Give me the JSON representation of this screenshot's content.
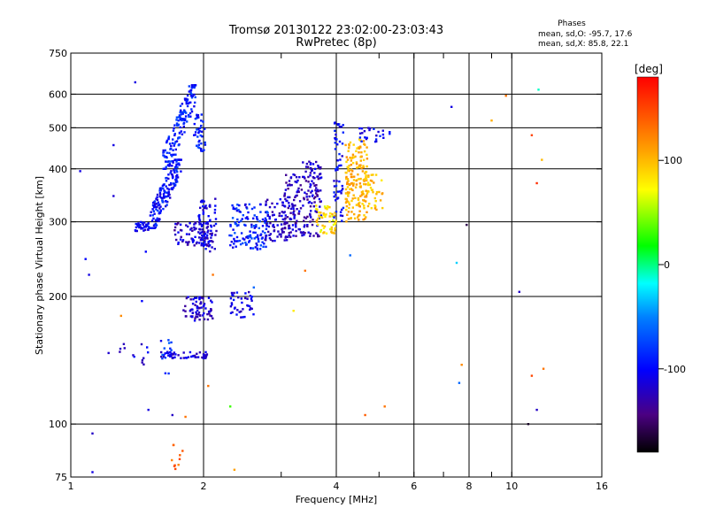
{
  "chart_data": {
    "type": "scatter",
    "title": "Tromsø 20130122 23:02:00-23:03:43",
    "subtitle": "RwPretec (8p)",
    "xlabel": "Frequency [MHz]",
    "ylabel": "Stationary phase Virtual Height [km]",
    "x_scale": "log",
    "y_scale": "log",
    "xlim": [
      1,
      16
    ],
    "ylim": [
      75,
      750
    ],
    "x_ticks": [
      1,
      2,
      4,
      6,
      8,
      10,
      16
    ],
    "x_minor_ticks": [
      3,
      5,
      7,
      9
    ],
    "y_ticks": [
      75,
      100,
      200,
      300,
      400,
      500,
      600,
      750
    ],
    "x_grid": [
      2,
      4,
      6,
      8,
      10
    ],
    "y_grid": [
      100,
      200,
      300,
      400,
      500,
      600
    ],
    "grid": true,
    "legend": {
      "heading": "Phases",
      "lines": [
        "mean, sd,O: -95.7, 17.6",
        "mean, sd,X:  85.8, 22.1"
      ],
      "placement": "top-right"
    },
    "colorbar": {
      "label": "[deg]",
      "range": [
        -180,
        180
      ],
      "ticks": [
        -100,
        0,
        100
      ]
    },
    "clusters": [
      {
        "f": [
          1.4,
          1.5
        ],
        "h": [
          285,
          300
        ],
        "n": 40,
        "phase": [
          -120,
          -85
        ]
      },
      {
        "f": [
          1.5,
          1.78
        ],
        "h": [
          290,
          420
        ],
        "n": 170,
        "phase": [
          -120,
          -75
        ],
        "trend": "rising"
      },
      {
        "f": [
          1.62,
          1.92
        ],
        "h": [
          400,
          630
        ],
        "n": 150,
        "phase": [
          -110,
          -70
        ],
        "trend": "rising"
      },
      {
        "f": [
          1.9,
          2.02
        ],
        "h": [
          440,
          540
        ],
        "n": 40,
        "phase": [
          -110,
          -70
        ]
      },
      {
        "f": [
          1.72,
          2.1
        ],
        "h": [
          262,
          300
        ],
        "n": 80,
        "phase": [
          -140,
          -95
        ]
      },
      {
        "f": [
          1.95,
          2.15
        ],
        "h": [
          255,
          340
        ],
        "n": 70,
        "phase": [
          -130,
          -90
        ]
      },
      {
        "f": [
          2.28,
          2.8
        ],
        "h": [
          258,
          330
        ],
        "n": 130,
        "phase": [
          -115,
          -65
        ]
      },
      {
        "f": [
          2.75,
          3.15
        ],
        "h": [
          270,
          340
        ],
        "n": 80,
        "phase": [
          -135,
          -100
        ]
      },
      {
        "f": [
          3.05,
          3.7
        ],
        "h": [
          275,
          390
        ],
        "n": 170,
        "phase": [
          -145,
          -100
        ]
      },
      {
        "f": [
          3.35,
          3.7
        ],
        "h": [
          380,
          420
        ],
        "n": 30,
        "phase": [
          -140,
          -100
        ]
      },
      {
        "f": [
          3.6,
          4.0
        ],
        "h": [
          280,
          330
        ],
        "n": 55,
        "phase": [
          60,
          110
        ]
      },
      {
        "f": [
          3.95,
          4.15
        ],
        "h": [
          300,
          520
        ],
        "n": 55,
        "phase": [
          -120,
          -80
        ]
      },
      {
        "f": [
          4.2,
          4.7
        ],
        "h": [
          300,
          470
        ],
        "n": 180,
        "phase": [
          85,
          120
        ]
      },
      {
        "f": [
          4.7,
          5.1
        ],
        "h": [
          320,
          390
        ],
        "n": 35,
        "phase": [
          80,
          115
        ]
      },
      {
        "f": [
          4.5,
          5.3
        ],
        "h": [
          460,
          500
        ],
        "n": 25,
        "phase": [
          -120,
          -80
        ]
      },
      {
        "f": [
          1.8,
          2.1
        ],
        "h": [
          175,
          200
        ],
        "n": 70,
        "phase": [
          -140,
          -100
        ]
      },
      {
        "f": [
          2.3,
          2.6
        ],
        "h": [
          178,
          205
        ],
        "n": 40,
        "phase": [
          -130,
          -90
        ]
      },
      {
        "f": [
          1.6,
          2.05
        ],
        "h": [
          143,
          148
        ],
        "n": 55,
        "phase": [
          -130,
          -95
        ]
      },
      {
        "f": [
          1.2,
          1.5
        ],
        "h": [
          138,
          155
        ],
        "n": 14,
        "phase": [
          -130,
          -90
        ]
      },
      {
        "f": [
          1.6,
          1.7
        ],
        "h": [
          130,
          160
        ],
        "n": 12,
        "phase": [
          -110,
          -60
        ]
      },
      {
        "f": [
          1.65,
          1.82
        ],
        "h": [
          78,
          92
        ],
        "n": 10,
        "phase": [
          120,
          150
        ]
      }
    ],
    "isolated": [
      {
        "f": 1.05,
        "h": 395,
        "phase": -110
      },
      {
        "f": 1.08,
        "h": 245,
        "phase": -100
      },
      {
        "f": 1.1,
        "h": 225,
        "phase": -110
      },
      {
        "f": 1.12,
        "h": 95,
        "phase": -120
      },
      {
        "f": 1.12,
        "h": 77,
        "phase": -110
      },
      {
        "f": 1.25,
        "h": 455,
        "phase": -110
      },
      {
        "f": 1.25,
        "h": 345,
        "phase": -115
      },
      {
        "f": 1.3,
        "h": 180,
        "phase": 120
      },
      {
        "f": 1.4,
        "h": 640,
        "phase": -110
      },
      {
        "f": 1.45,
        "h": 195,
        "phase": -100
      },
      {
        "f": 1.48,
        "h": 255,
        "phase": -100
      },
      {
        "f": 1.5,
        "h": 108,
        "phase": -110
      },
      {
        "f": 1.7,
        "h": 105,
        "phase": -120
      },
      {
        "f": 1.82,
        "h": 104,
        "phase": 130
      },
      {
        "f": 2.05,
        "h": 123,
        "phase": 130
      },
      {
        "f": 2.1,
        "h": 225,
        "phase": 130
      },
      {
        "f": 2.3,
        "h": 110,
        "phase": 30
      },
      {
        "f": 2.35,
        "h": 78,
        "phase": 110
      },
      {
        "f": 2.6,
        "h": 210,
        "phase": -60
      },
      {
        "f": 3.2,
        "h": 185,
        "phase": 80
      },
      {
        "f": 3.4,
        "h": 230,
        "phase": 130
      },
      {
        "f": 4.3,
        "h": 250,
        "phase": -60
      },
      {
        "f": 4.65,
        "h": 105,
        "phase": 140
      },
      {
        "f": 5.15,
        "h": 110,
        "phase": 130
      },
      {
        "f": 7.3,
        "h": 560,
        "phase": -110
      },
      {
        "f": 7.5,
        "h": 240,
        "phase": -30
      },
      {
        "f": 7.6,
        "h": 125,
        "phase": -60
      },
      {
        "f": 7.7,
        "h": 138,
        "phase": 120
      },
      {
        "f": 7.9,
        "h": 295,
        "phase": -160
      },
      {
        "f": 9.0,
        "h": 520,
        "phase": 105
      },
      {
        "f": 9.7,
        "h": 595,
        "phase": 130
      },
      {
        "f": 10.4,
        "h": 205,
        "phase": -120
      },
      {
        "f": 10.9,
        "h": 100,
        "phase": -170
      },
      {
        "f": 11.1,
        "h": 480,
        "phase": 150
      },
      {
        "f": 11.1,
        "h": 130,
        "phase": 150
      },
      {
        "f": 11.4,
        "h": 370,
        "phase": 160
      },
      {
        "f": 11.5,
        "h": 615,
        "phase": -10
      },
      {
        "f": 11.4,
        "h": 108,
        "phase": -120
      },
      {
        "f": 11.7,
        "h": 420,
        "phase": 100
      },
      {
        "f": 11.8,
        "h": 135,
        "phase": 130
      }
    ]
  }
}
